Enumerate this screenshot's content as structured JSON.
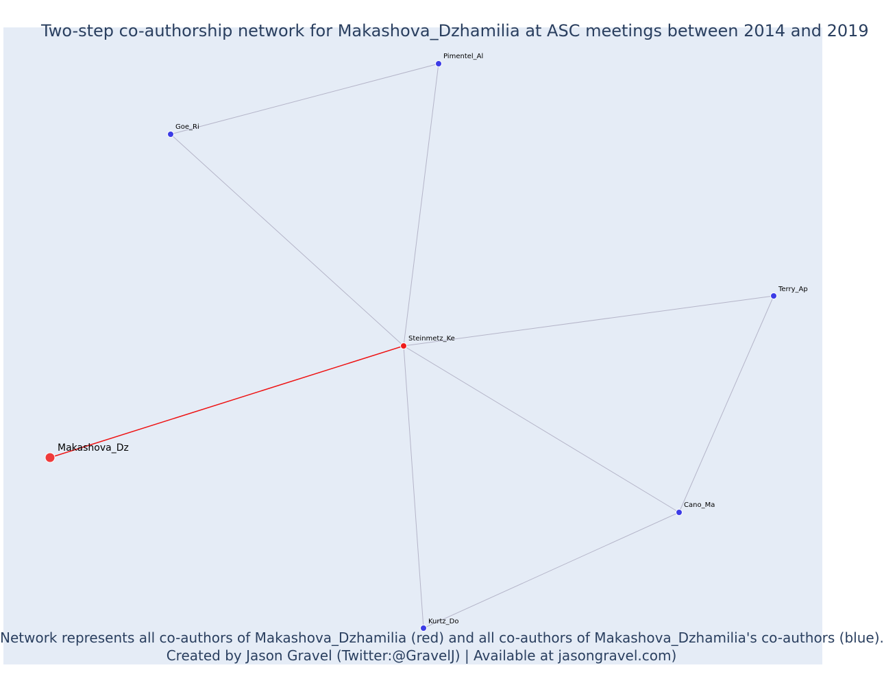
{
  "title": "Two-step co-authorship network for Makashova_Dzhamilia at ASC meetings between 2014 and 2019",
  "caption": {
    "line1": "Network represents all co-authors of Makashova_Dzhamilia (red) and all co-authors of Makashova_Dzhamilia's co-authors (blue).",
    "line2": "Created by Jason Gravel (Twitter:@GravelJ) | Available at jasongravel.com)"
  },
  "colors": {
    "background": "#e5ecf6",
    "text": "#2a3f5f",
    "ego": "#ef3b3b",
    "first_step": "#ee1c1c",
    "second_step": "#3c3ce6",
    "edge": "#b4b4c8",
    "ego_edge": "#ee1111"
  },
  "nodes": [
    {
      "id": "Makashova_Dz",
      "label": "Makashova_Dz",
      "role": "ego"
    },
    {
      "id": "Steinmetz_Ke",
      "label": "Steinmetz_Ke",
      "role": "coauthor"
    },
    {
      "id": "Pimentel_Al",
      "label": "Pimentel_Al",
      "role": "second"
    },
    {
      "id": "Goe_Ri",
      "label": "Goe_Ri",
      "role": "second"
    },
    {
      "id": "Terry_Ap",
      "label": "Terry_Ap",
      "role": "second"
    },
    {
      "id": "Cano_Ma",
      "label": "Cano_Ma",
      "role": "second"
    },
    {
      "id": "Kurtz_Do",
      "label": "Kurtz_Do",
      "role": "second"
    }
  ],
  "edges": [
    {
      "source": "Makashova_Dz",
      "target": "Steinmetz_Ke",
      "ego": true
    },
    {
      "source": "Goe_Ri",
      "target": "Pimentel_Al"
    },
    {
      "source": "Goe_Ri",
      "target": "Steinmetz_Ke"
    },
    {
      "source": "Pimentel_Al",
      "target": "Steinmetz_Ke"
    },
    {
      "source": "Steinmetz_Ke",
      "target": "Terry_Ap"
    },
    {
      "source": "Steinmetz_Ke",
      "target": "Cano_Ma"
    },
    {
      "source": "Steinmetz_Ke",
      "target": "Kurtz_Do"
    },
    {
      "source": "Terry_Ap",
      "target": "Cano_Ma"
    },
    {
      "source": "Cano_Ma",
      "target": "Kurtz_Do"
    }
  ]
}
